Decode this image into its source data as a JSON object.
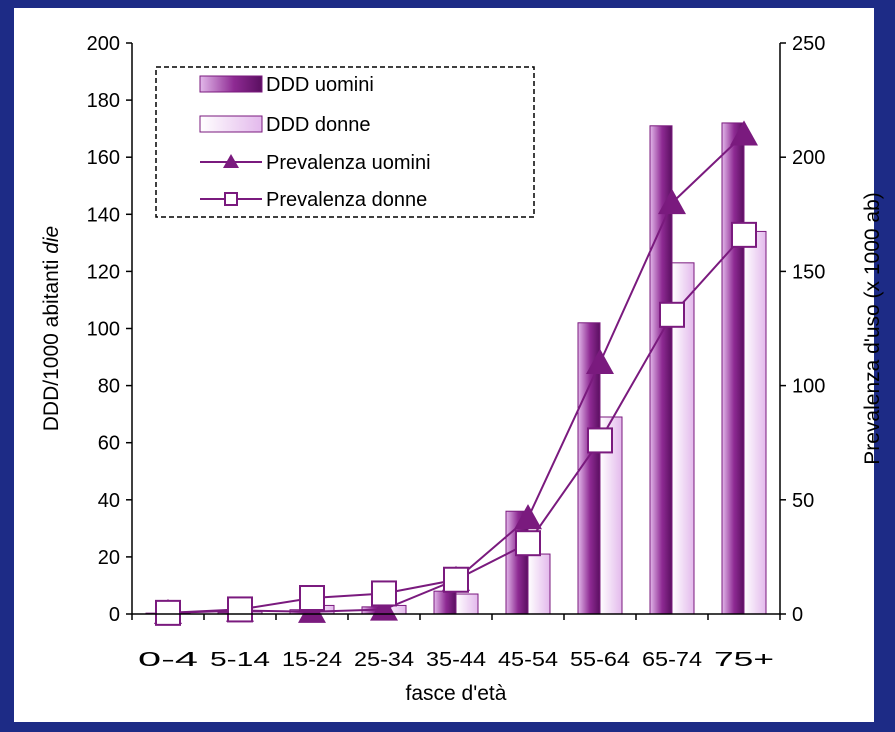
{
  "chart_data": {
    "type": "bar",
    "categories": [
      "0-4",
      "5-14",
      "15-24",
      "25-34",
      "35-44",
      "45-54",
      "55-64",
      "65-74",
      "75+"
    ],
    "xlabel": "fasce d'età",
    "ylabel": "DDD/1000 abitanti",
    "ylabel_italic": "die",
    "y2label": "Prevalenza d'uso (x 1000 ab)",
    "ylim": [
      0,
      200
    ],
    "y2lim": [
      0,
      250
    ],
    "yticks": [
      0,
      20,
      40,
      60,
      80,
      100,
      120,
      140,
      160,
      180,
      200
    ],
    "y2ticks": [
      0,
      50,
      100,
      150,
      200,
      250
    ],
    "series": [
      {
        "name": "DDD uomini",
        "kind": "bar",
        "axis": "left",
        "values": [
          0.3,
          0.5,
          1.5,
          2.5,
          8,
          36,
          102,
          171,
          172
        ]
      },
      {
        "name": "DDD donne",
        "kind": "bar",
        "axis": "left",
        "values": [
          0.3,
          0.8,
          3,
          3,
          7,
          21,
          69,
          123,
          134
        ]
      },
      {
        "name": "Prevalenza uomini",
        "kind": "line",
        "marker": "triangle",
        "axis": "right",
        "values": [
          0.5,
          1.5,
          1,
          2,
          15,
          42,
          110,
          180,
          210
        ]
      },
      {
        "name": "Prevalenza donne",
        "kind": "line",
        "marker": "square",
        "axis": "right",
        "values": [
          0.5,
          2,
          7,
          9,
          15,
          31,
          76,
          131,
          166
        ]
      }
    ],
    "legend": "top-left",
    "colors": {
      "bar_men": "#7a1a7e",
      "bar_women": "#ecc8f2",
      "line": "#7a1a7e",
      "frame": "#1d2b86"
    }
  }
}
